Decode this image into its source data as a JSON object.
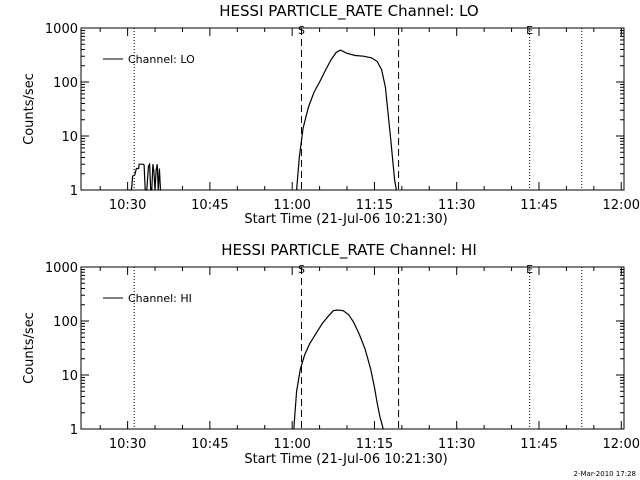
{
  "footer": {
    "timestamp": "2-Mar-2010 17:28"
  },
  "chart_data": [
    {
      "type": "line",
      "title": "HESSI PARTICLE_RATE Channel: LO",
      "xlabel": "Start Time (21-Jul-06 10:21:30)",
      "ylabel": "Counts/sec",
      "yscale": "log",
      "ylim": [
        1,
        1000
      ],
      "xlim_minutes_after_start": [
        0,
        99
      ],
      "xticks": [
        {
          "label": "10:30",
          "t": 8.5
        },
        {
          "label": "10:45",
          "t": 23.5
        },
        {
          "label": "11:00",
          "t": 38.5
        },
        {
          "label": "11:15",
          "t": 53.5
        },
        {
          "label": "11:30",
          "t": 68.5
        },
        {
          "label": "11:45",
          "t": 83.5
        },
        {
          "label": "12:00",
          "t": 98.5
        }
      ],
      "yticks": [
        {
          "label": "1",
          "v": 1
        },
        {
          "label": "10",
          "v": 10
        },
        {
          "label": "100",
          "v": 100
        },
        {
          "label": "1000",
          "v": 1000
        }
      ],
      "legend": {
        "label": "Channel: LO",
        "position": "top-left"
      },
      "markers": [
        {
          "label": "S",
          "t": 40.2,
          "style": "dashed"
        },
        {
          "label": "",
          "t": 57.9,
          "style": "dashed"
        },
        {
          "label": "",
          "t": 9.7,
          "style": "dotted"
        },
        {
          "label": "E",
          "t": 81.8,
          "style": "dotted"
        },
        {
          "label": "",
          "t": 91.3,
          "style": "dotted"
        }
      ],
      "series": [
        {
          "x": [
            8.8,
            9.2,
            9.4,
            9.8,
            10.1,
            10.5,
            10.6,
            11.3,
            11.5,
            11.7,
            12.0,
            12.3,
            12.5,
            12.7,
            12.9,
            13.1,
            13.3,
            13.5,
            13.7,
            13.9,
            14.1,
            14.3,
            14.5,
            14.7
          ],
          "y": [
            1.0,
            1.0,
            1.8,
            1.9,
            2.5,
            2.5,
            3.0,
            3.0,
            2.9,
            1.0,
            1.0,
            2.8,
            3.0,
            1.0,
            1.0,
            3.0,
            2.2,
            1.0,
            2.3,
            3.0,
            1.0,
            2.5,
            1.0,
            1.0
          ]
        },
        {
          "x": [
            39.3,
            39.8,
            40.5,
            41.5,
            42.5,
            43.5,
            44.5,
            45.5,
            46.5,
            47.3,
            48.5,
            50.0,
            51.5,
            53.0,
            54.0,
            54.8,
            55.5,
            56.0,
            56.5,
            56.9,
            57.2,
            57.5
          ],
          "y": [
            1.0,
            4.0,
            14.0,
            35.0,
            65.0,
            100.0,
            160.0,
            250.0,
            350.0,
            390.0,
            340.0,
            310.0,
            300.0,
            280.0,
            240.0,
            170.0,
            80.0,
            25.0,
            8.0,
            3.0,
            1.5,
            1.0
          ]
        }
      ]
    },
    {
      "type": "line",
      "title": "HESSI PARTICLE_RATE Channel: HI",
      "xlabel": "Start Time (21-Jul-06 10:21:30)",
      "ylabel": "Counts/sec",
      "yscale": "log",
      "ylim": [
        1,
        1000
      ],
      "xlim_minutes_after_start": [
        0,
        99
      ],
      "xticks": [
        {
          "label": "10:30",
          "t": 8.5
        },
        {
          "label": "10:45",
          "t": 23.5
        },
        {
          "label": "11:00",
          "t": 38.5
        },
        {
          "label": "11:15",
          "t": 53.5
        },
        {
          "label": "11:30",
          "t": 68.5
        },
        {
          "label": "11:45",
          "t": 83.5
        },
        {
          "label": "12:00",
          "t": 98.5
        }
      ],
      "yticks": [
        {
          "label": "1",
          "v": 1
        },
        {
          "label": "10",
          "v": 10
        },
        {
          "label": "100",
          "v": 100
        },
        {
          "label": "1000",
          "v": 1000
        }
      ],
      "legend": {
        "label": "Channel: HI",
        "position": "top-left"
      },
      "markers": [
        {
          "label": "S",
          "t": 40.2,
          "style": "dashed"
        },
        {
          "label": "",
          "t": 57.9,
          "style": "dashed"
        },
        {
          "label": "",
          "t": 9.7,
          "style": "dotted"
        },
        {
          "label": "E",
          "t": 81.8,
          "style": "dotted"
        },
        {
          "label": "",
          "t": 91.3,
          "style": "dotted"
        }
      ],
      "series": [
        {
          "x": [
            38.8,
            39.3,
            40.0,
            40.8,
            41.7,
            42.8,
            44.0,
            45.0,
            46.0,
            46.7,
            47.8,
            48.8,
            49.7,
            50.8,
            51.8,
            52.8,
            53.5,
            54.0,
            54.5,
            54.9,
            55.1
          ],
          "y": [
            1.0,
            5.0,
            13.0,
            24.0,
            38.0,
            58.0,
            90.0,
            120.0,
            155.0,
            160.0,
            155.0,
            130.0,
            95.0,
            55.0,
            30.0,
            13.0,
            6.0,
            3.0,
            1.7,
            1.2,
            1.0
          ]
        }
      ]
    }
  ]
}
